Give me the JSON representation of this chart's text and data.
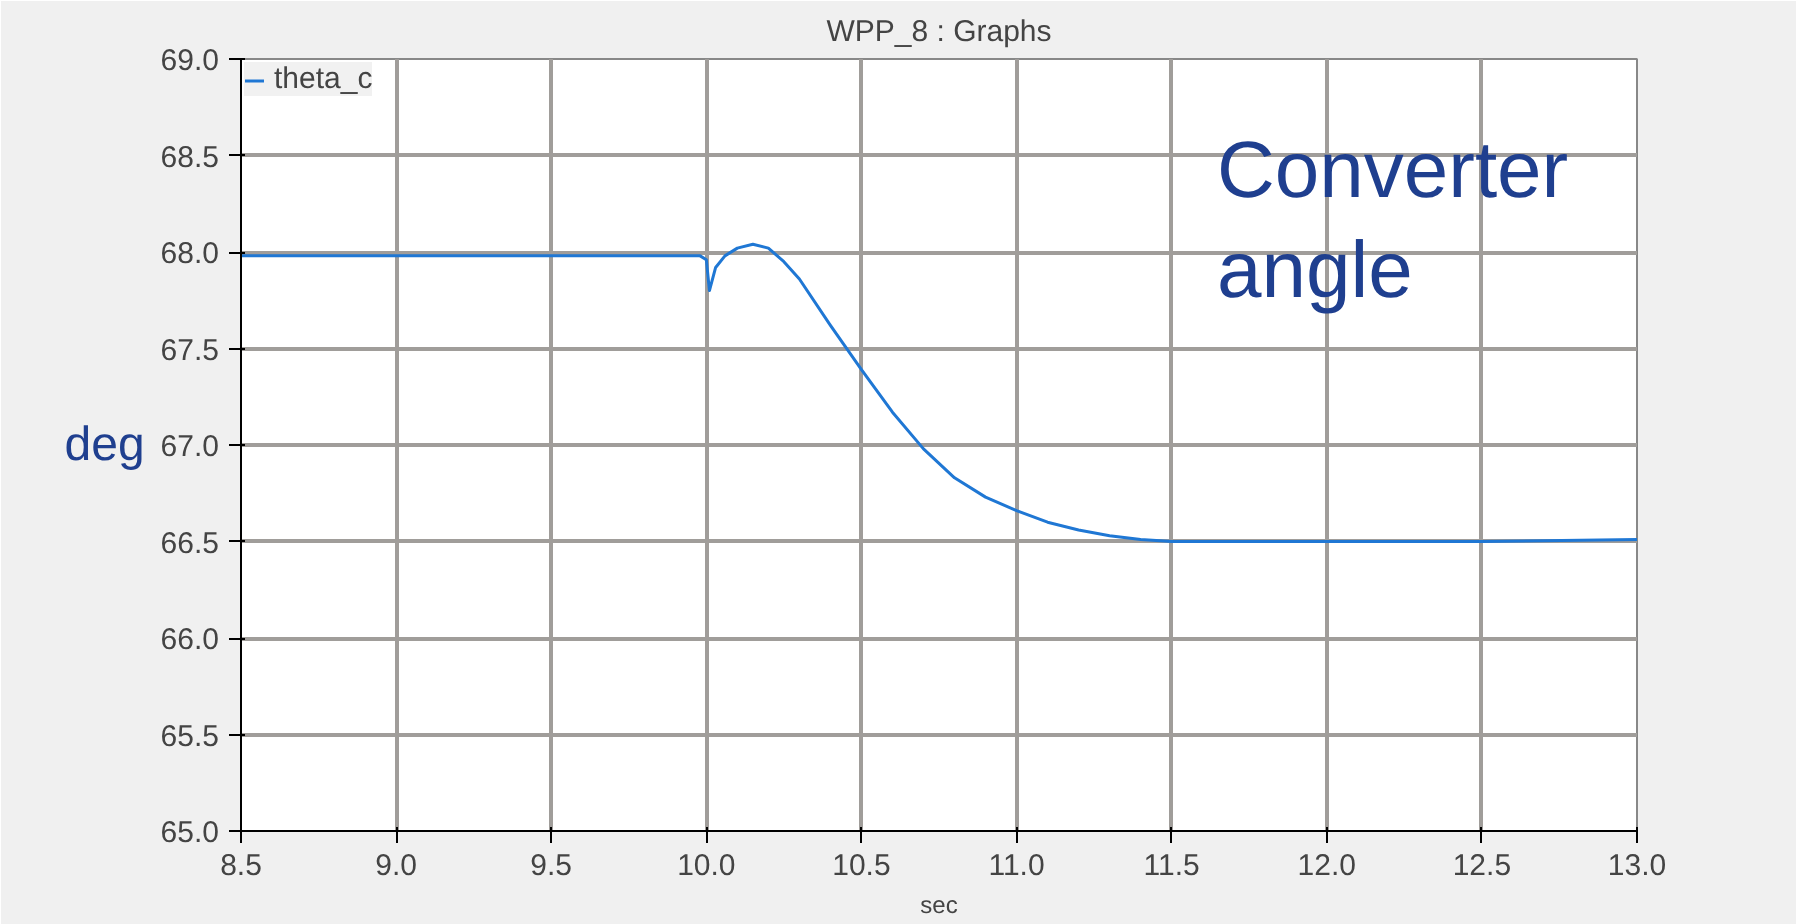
{
  "chart_data": {
    "type": "line",
    "title": "WPP_8 : Graphs",
    "xlabel": "sec",
    "ylabel": "deg",
    "annotations": [
      "Converter angle"
    ],
    "x": [
      8.5,
      9.0,
      9.5,
      9.98,
      10.0,
      10.01,
      10.03,
      10.06,
      10.1,
      10.15,
      10.2,
      10.25,
      10.3,
      10.4,
      10.5,
      10.6,
      10.7,
      10.8,
      10.9,
      11.0,
      11.1,
      11.2,
      11.3,
      11.4,
      11.5,
      12.0,
      12.5,
      13.0
    ],
    "series": [
      {
        "name": "theta_c",
        "color": "#1f77d4",
        "values": [
          67.98,
          67.98,
          67.98,
          67.98,
          67.96,
          67.8,
          67.92,
          67.98,
          68.02,
          68.04,
          68.02,
          67.95,
          67.86,
          67.62,
          67.39,
          67.17,
          66.98,
          66.83,
          66.73,
          66.66,
          66.6,
          66.56,
          66.53,
          66.51,
          66.5,
          66.5,
          66.5,
          66.51
        ]
      }
    ],
    "xlim": [
      8.5,
      13.0
    ],
    "ylim": [
      65.0,
      69.0
    ],
    "xticks": [
      {
        "value": 8.5,
        "label": "8.5"
      },
      {
        "value": 9.0,
        "label": "9.0"
      },
      {
        "value": 9.5,
        "label": "9.5"
      },
      {
        "value": 10.0,
        "label": "10.0"
      },
      {
        "value": 10.5,
        "label": "10.5"
      },
      {
        "value": 11.0,
        "label": "11.0"
      },
      {
        "value": 11.5,
        "label": "11.5"
      },
      {
        "value": 12.0,
        "label": "12.0"
      },
      {
        "value": 12.5,
        "label": "12.5"
      },
      {
        "value": 13.0,
        "label": "13.0"
      }
    ],
    "yticks": [
      {
        "value": 65.0,
        "label": "65.0"
      },
      {
        "value": 65.5,
        "label": "65.5"
      },
      {
        "value": 66.0,
        "label": "66.0"
      },
      {
        "value": 66.5,
        "label": "66.5"
      },
      {
        "value": 67.0,
        "label": "67.0"
      },
      {
        "value": 67.5,
        "label": "67.5"
      },
      {
        "value": 68.0,
        "label": "68.0"
      },
      {
        "value": 68.5,
        "label": "68.5"
      },
      {
        "value": 69.0,
        "label": "69.0"
      }
    ],
    "grid": true,
    "legend": "top left",
    "marker": "none",
    "line_style": "solid"
  }
}
